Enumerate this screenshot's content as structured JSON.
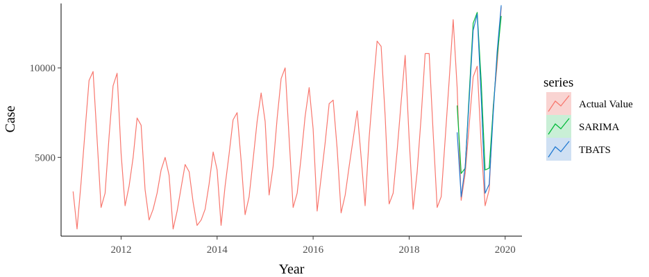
{
  "chart_data": {
    "type": "line",
    "title": "",
    "xlabel": "Year",
    "ylabel": "Case",
    "xlim": [
      2010.75,
      2020.35
    ],
    "ylim": [
      600,
      13600
    ],
    "x_ticks": [
      2012,
      2014,
      2016,
      2018,
      2020
    ],
    "y_ticks": [
      5000,
      10000
    ],
    "grid": false,
    "legend": {
      "title": "series",
      "position": "right"
    },
    "series": [
      {
        "name": "Actual Value",
        "color": "#F8766D",
        "x": [
          2011.0,
          2011.083,
          2011.167,
          2011.25,
          2011.333,
          2011.417,
          2011.5,
          2011.583,
          2011.667,
          2011.75,
          2011.833,
          2011.917,
          2012.0,
          2012.083,
          2012.167,
          2012.25,
          2012.333,
          2012.417,
          2012.5,
          2012.583,
          2012.667,
          2012.75,
          2012.833,
          2012.917,
          2013.0,
          2013.083,
          2013.167,
          2013.25,
          2013.333,
          2013.417,
          2013.5,
          2013.583,
          2013.667,
          2013.75,
          2013.833,
          2013.917,
          2014.0,
          2014.083,
          2014.167,
          2014.25,
          2014.333,
          2014.417,
          2014.5,
          2014.583,
          2014.667,
          2014.75,
          2014.833,
          2014.917,
          2015.0,
          2015.083,
          2015.167,
          2015.25,
          2015.333,
          2015.417,
          2015.5,
          2015.583,
          2015.667,
          2015.75,
          2015.833,
          2015.917,
          2016.0,
          2016.083,
          2016.167,
          2016.25,
          2016.333,
          2016.417,
          2016.5,
          2016.583,
          2016.667,
          2016.75,
          2016.833,
          2016.917,
          2017.0,
          2017.083,
          2017.167,
          2017.25,
          2017.333,
          2017.417,
          2017.5,
          2017.583,
          2017.667,
          2017.75,
          2017.833,
          2017.917,
          2018.0,
          2018.083,
          2018.167,
          2018.25,
          2018.333,
          2018.417,
          2018.5,
          2018.583,
          2018.667,
          2018.75,
          2018.833,
          2018.917,
          2019.0,
          2019.083,
          2019.167,
          2019.25,
          2019.333,
          2019.417,
          2019.5,
          2019.583,
          2019.667,
          2019.75,
          2019.833,
          2019.917
        ],
        "values": [
          3100,
          1000,
          3600,
          6500,
          9300,
          9800,
          6000,
          2200,
          3000,
          6200,
          9000,
          9700,
          5200,
          2300,
          3400,
          5000,
          7200,
          6800,
          3200,
          1500,
          2100,
          3000,
          4300,
          5000,
          4000,
          1000,
          2000,
          3300,
          4600,
          4200,
          2500,
          1200,
          1500,
          2100,
          3500,
          5300,
          4300,
          1200,
          3400,
          5200,
          7100,
          7500,
          4800,
          1800,
          2800,
          4900,
          7000,
          8600,
          7000,
          2900,
          4500,
          7200,
          9400,
          10000,
          6100,
          2200,
          3000,
          5000,
          7300,
          8900,
          6600,
          2000,
          3900,
          5800,
          8000,
          8200,
          5500,
          1900,
          2900,
          4500,
          6000,
          7600,
          5000,
          2300,
          6100,
          8900,
          11500,
          11200,
          7300,
          2400,
          3000,
          5400,
          8100,
          10700,
          6000,
          2100,
          4200,
          7300,
          10800,
          10800,
          6400,
          2200,
          2800,
          6000,
          9300,
          12700,
          8900,
          2600,
          4100,
          6800,
          9500,
          10100,
          5700,
          2300,
          3200,
          7800,
          10200,
          13400
        ]
      },
      {
        "name": "SARIMA",
        "color": "#00BA38",
        "x": [
          2019.0,
          2019.083,
          2019.167,
          2019.25,
          2019.333,
          2019.417,
          2019.5,
          2019.583,
          2019.667,
          2019.75,
          2019.833,
          2019.917
        ],
        "values": [
          7900,
          4100,
          4400,
          8500,
          12500,
          13100,
          9300,
          4300,
          4400,
          7700,
          10600,
          12900
        ]
      },
      {
        "name": "TBATS",
        "color": "#1F78D1",
        "x": [
          2019.0,
          2019.083,
          2019.167,
          2019.25,
          2019.333,
          2019.417,
          2019.5,
          2019.583,
          2019.667,
          2019.75,
          2019.833,
          2019.917
        ],
        "values": [
          6400,
          2800,
          4500,
          8200,
          12100,
          13000,
          8400,
          3000,
          3500,
          7400,
          10900,
          13500
        ]
      }
    ]
  }
}
